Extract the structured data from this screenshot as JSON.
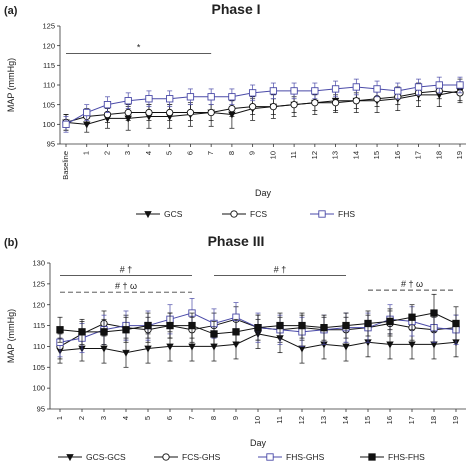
{
  "chart_data": [
    {
      "type": "line",
      "panel_label": "(a)",
      "title": "Phase I",
      "xlabel": "Day",
      "ylabel": "MAP (mmHg)",
      "ylim": [
        95,
        125
      ],
      "yticks": [
        95,
        100,
        105,
        110,
        115,
        120,
        125
      ],
      "x": [
        "Baseline",
        "1",
        "2",
        "3",
        "4",
        "5",
        "6",
        "7",
        "8",
        "9",
        "10",
        "11",
        "12",
        "13",
        "14",
        "15",
        "16",
        "17",
        "18",
        "19"
      ],
      "series": [
        {
          "name": "GCS",
          "marker": "triangle-down-filled",
          "color": "#111111",
          "values": [
            100.5,
            100.0,
            101.5,
            101.5,
            102.0,
            102.0,
            102.5,
            103.0,
            102.5,
            104.0,
            104.5,
            105.0,
            105.5,
            106.0,
            106.0,
            106.0,
            106.5,
            107.5,
            107.5,
            108.5
          ],
          "errors": [
            2.0,
            2.0,
            2.5,
            3.0,
            3.0,
            3.0,
            3.0,
            3.5,
            3.5,
            3.0,
            3.0,
            3.0,
            3.0,
            3.0,
            3.0,
            3.0,
            3.0,
            3.0,
            3.0,
            3.0
          ]
        },
        {
          "name": "FCS",
          "marker": "circle-open",
          "color": "#111111",
          "values": [
            100.5,
            102.0,
            102.5,
            103.0,
            103.0,
            103.0,
            103.0,
            103.0,
            104.0,
            104.5,
            104.5,
            105.0,
            105.5,
            105.5,
            106.0,
            106.5,
            107.0,
            108.0,
            108.5,
            108.0
          ],
          "errors": [
            2.0,
            2.0,
            2.0,
            2.0,
            2.0,
            2.0,
            2.0,
            2.0,
            2.0,
            2.0,
            2.0,
            2.0,
            2.0,
            2.0,
            2.0,
            2.0,
            2.0,
            2.0,
            2.0,
            2.0
          ]
        },
        {
          "name": "FHS",
          "marker": "square-open",
          "color": "#4a4aa8",
          "values": [
            100.0,
            103.0,
            105.0,
            106.0,
            106.5,
            106.5,
            107.0,
            107.0,
            107.0,
            108.0,
            108.5,
            108.5,
            108.5,
            109.0,
            109.5,
            109.0,
            108.5,
            109.5,
            110.0,
            110.0
          ],
          "errors": [
            2.0,
            2.0,
            2.0,
            2.0,
            2.0,
            2.0,
            2.0,
            2.0,
            2.0,
            2.0,
            2.0,
            2.0,
            2.0,
            2.0,
            2.0,
            2.0,
            2.0,
            2.0,
            2.0,
            2.0
          ]
        }
      ],
      "annotations": [
        {
          "text": "*",
          "line_from": "Baseline",
          "line_to": "7",
          "y": 118,
          "style": "solid"
        }
      ],
      "grid": false,
      "legend": "bottom"
    },
    {
      "type": "line",
      "panel_label": "(b)",
      "title": "Phase III",
      "xlabel": "Day",
      "ylabel": "MAP (mmHg)",
      "ylim": [
        95,
        130
      ],
      "yticks": [
        95,
        100,
        105,
        110,
        115,
        120,
        125,
        130
      ],
      "x": [
        "1",
        "2",
        "3",
        "4",
        "5",
        "6",
        "7",
        "8",
        "9",
        "10",
        "11",
        "12",
        "13",
        "14",
        "15",
        "16",
        "17",
        "18",
        "19"
      ],
      "series": [
        {
          "name": "GCS-GCS",
          "marker": "triangle-down-filled",
          "color": "#111111",
          "values": [
            109.0,
            109.5,
            109.5,
            108.5,
            109.5,
            110.0,
            110.0,
            110.0,
            110.5,
            113.0,
            112.0,
            109.5,
            110.5,
            110.0,
            111.0,
            110.5,
            110.5,
            110.5,
            111.0
          ],
          "errors": [
            3.0,
            3.0,
            3.5,
            3.5,
            3.5,
            3.5,
            3.5,
            3.5,
            3.5,
            3.5,
            3.5,
            3.5,
            3.5,
            3.5,
            3.5,
            3.5,
            3.5,
            3.5,
            3.5
          ]
        },
        {
          "name": "FCS-GHS",
          "marker": "circle-open",
          "color": "#111111",
          "values": [
            110.0,
            113.0,
            115.5,
            114.5,
            114.0,
            115.0,
            114.0,
            115.0,
            116.5,
            114.5,
            114.0,
            114.5,
            114.0,
            114.0,
            114.5,
            115.5,
            114.5,
            114.0,
            114.5
          ],
          "errors": [
            3.0,
            3.0,
            3.0,
            3.0,
            3.0,
            3.0,
            3.0,
            3.0,
            3.0,
            3.0,
            3.0,
            3.0,
            3.0,
            3.0,
            3.0,
            3.0,
            3.0,
            3.0,
            3.0
          ]
        },
        {
          "name": "FHS-GHS",
          "marker": "square-open",
          "color": "#4a4aa8",
          "values": [
            111.0,
            112.0,
            114.0,
            115.0,
            115.0,
            116.5,
            118.0,
            115.5,
            117.0,
            114.5,
            114.0,
            113.5,
            114.0,
            114.5,
            114.5,
            116.5,
            116.0,
            114.5,
            114.0
          ],
          "errors": [
            3.5,
            3.5,
            3.5,
            3.5,
            3.5,
            3.5,
            3.5,
            3.5,
            3.5,
            3.5,
            3.5,
            3.5,
            3.5,
            3.5,
            3.5,
            3.5,
            3.5,
            3.5,
            3.5
          ]
        },
        {
          "name": "FHS-FHS",
          "marker": "square-filled",
          "color": "#111111",
          "values": [
            114.0,
            113.5,
            113.5,
            114.0,
            115.0,
            115.0,
            115.0,
            113.0,
            113.5,
            114.5,
            115.0,
            115.0,
            114.5,
            115.0,
            115.5,
            116.0,
            117.0,
            118.0,
            115.5
          ],
          "errors": [
            3.0,
            3.0,
            3.0,
            3.0,
            3.0,
            3.0,
            3.0,
            3.0,
            3.0,
            3.0,
            3.0,
            3.0,
            3.0,
            3.0,
            3.0,
            3.0,
            3.0,
            4.5,
            4.0
          ]
        }
      ],
      "annotations": [
        {
          "text": "# †",
          "line_from": "1",
          "line_to": "7",
          "y": 127,
          "style": "solid"
        },
        {
          "text": "# † ω",
          "line_from": "1",
          "line_to": "7",
          "y": 123,
          "style": "dashed"
        },
        {
          "text": "# †",
          "line_from": "8",
          "line_to": "14",
          "y": 127,
          "style": "solid"
        },
        {
          "text": "# † ω",
          "line_from": "15",
          "line_to": "19",
          "y": 123.5,
          "style": "dashed"
        }
      ],
      "grid": false,
      "legend": "bottom"
    }
  ]
}
